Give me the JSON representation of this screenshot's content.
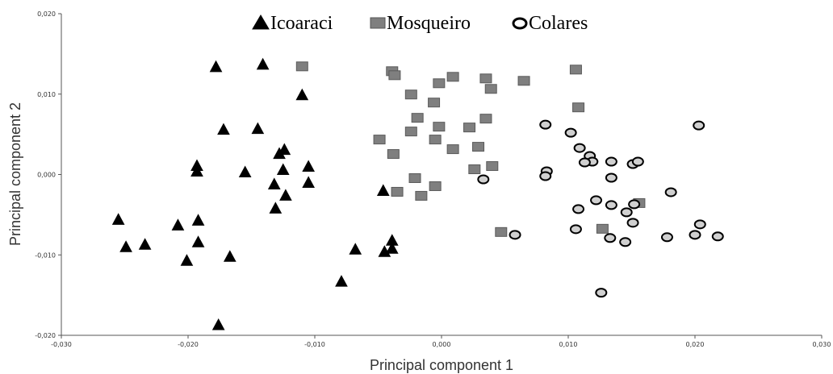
{
  "chart_data": {
    "type": "scatter",
    "title": "",
    "xlabel": "Principal component 1",
    "ylabel": "Principal component 2",
    "xlim": [
      -0.03,
      0.03
    ],
    "ylim": [
      -0.02,
      0.02
    ],
    "xticks": [
      "-0,030",
      "-0,020",
      "-0,010",
      "0,000",
      "0,010",
      "0,020",
      "0,030"
    ],
    "yticks": [
      "-0,020",
      "-0,010",
      "0,000",
      "0,010",
      "0,020"
    ],
    "legend_position": "top-center",
    "grid": false,
    "series": [
      {
        "name": "Icoaraci",
        "marker": "triangle",
        "color": "#000000",
        "points": [
          [
            -0.0178,
            0.0134
          ],
          [
            -0.0141,
            0.0137
          ],
          [
            -0.011,
            0.0099
          ],
          [
            -0.0172,
            0.0056
          ],
          [
            -0.0145,
            0.0057
          ],
          [
            -0.0124,
            0.0031
          ],
          [
            -0.0128,
            0.0026
          ],
          [
            -0.0193,
            0.0011
          ],
          [
            -0.0193,
            0.0004
          ],
          [
            -0.0155,
            0.0003
          ],
          [
            -0.0125,
            0.0006
          ],
          [
            -0.0105,
            0.001
          ],
          [
            -0.0132,
            -0.0012
          ],
          [
            -0.0105,
            -0.001
          ],
          [
            -0.0123,
            -0.0026
          ],
          [
            -0.0131,
            -0.0042
          ],
          [
            -0.0046,
            -0.002
          ],
          [
            -0.0255,
            -0.0056
          ],
          [
            -0.0192,
            -0.0057
          ],
          [
            -0.0208,
            -0.0063
          ],
          [
            -0.0249,
            -0.009
          ],
          [
            -0.0234,
            -0.0087
          ],
          [
            -0.0192,
            -0.0084
          ],
          [
            -0.0167,
            -0.0102
          ],
          [
            -0.0201,
            -0.0107
          ],
          [
            -0.0068,
            -0.0093
          ],
          [
            -0.0039,
            -0.0082
          ],
          [
            -0.0045,
            -0.0096
          ],
          [
            -0.0039,
            -0.0092
          ],
          [
            -0.0079,
            -0.0133
          ],
          [
            -0.0176,
            -0.0187
          ]
        ]
      },
      {
        "name": "Mosqueiro",
        "marker": "square",
        "color": "#7f7f7f",
        "points": [
          [
            -0.011,
            0.0135
          ],
          [
            -0.0039,
            0.0129
          ],
          [
            -0.0037,
            0.0124
          ],
          [
            0.0009,
            0.0122
          ],
          [
            0.0035,
            0.012
          ],
          [
            -0.0002,
            0.0114
          ],
          [
            0.0065,
            0.0117
          ],
          [
            0.0106,
            0.0131
          ],
          [
            0.0039,
            0.0107
          ],
          [
            -0.0024,
            0.01
          ],
          [
            -0.0006,
            0.009
          ],
          [
            0.0108,
            0.0084
          ],
          [
            -0.0019,
            0.0071
          ],
          [
            0.0035,
            0.007
          ],
          [
            -0.0002,
            0.006
          ],
          [
            0.0022,
            0.0059
          ],
          [
            -0.0024,
            0.0054
          ],
          [
            -0.0049,
            0.0044
          ],
          [
            -0.0005,
            0.0044
          ],
          [
            0.0029,
            0.0035
          ],
          [
            0.0009,
            0.0032
          ],
          [
            -0.0038,
            0.0026
          ],
          [
            0.004,
            0.0011
          ],
          [
            0.0026,
            0.0007
          ],
          [
            -0.0021,
            -0.0004
          ],
          [
            -0.0005,
            -0.0014
          ],
          [
            -0.0035,
            -0.0021
          ],
          [
            -0.0016,
            -0.0026
          ],
          [
            0.0156,
            -0.0035
          ],
          [
            0.0047,
            -0.0071
          ],
          [
            0.0127,
            -0.0067
          ]
        ]
      },
      {
        "name": "Colares",
        "marker": "circle",
        "color": "#d0d0d0",
        "points": [
          [
            0.0082,
            0.0062
          ],
          [
            0.0102,
            0.0052
          ],
          [
            0.0203,
            0.0061
          ],
          [
            0.0109,
            0.0033
          ],
          [
            0.0117,
            0.0023
          ],
          [
            0.0119,
            0.0016
          ],
          [
            0.0113,
            0.0015
          ],
          [
            0.0134,
            0.0016
          ],
          [
            0.0151,
            0.0013
          ],
          [
            0.0155,
            0.0016
          ],
          [
            0.0083,
            0.0004
          ],
          [
            0.0082,
            -0.0002
          ],
          [
            0.0134,
            -0.0004
          ],
          [
            0.0033,
            -0.0006
          ],
          [
            0.0181,
            -0.0022
          ],
          [
            0.0122,
            -0.0032
          ],
          [
            0.0134,
            -0.0038
          ],
          [
            0.0152,
            -0.0037
          ],
          [
            0.0108,
            -0.0043
          ],
          [
            0.0146,
            -0.0047
          ],
          [
            0.0151,
            -0.006
          ],
          [
            0.0204,
            -0.0062
          ],
          [
            0.0106,
            -0.0068
          ],
          [
            0.0058,
            -0.0075
          ],
          [
            0.02,
            -0.0075
          ],
          [
            0.0218,
            -0.0077
          ],
          [
            0.0178,
            -0.0078
          ],
          [
            0.0133,
            -0.0079
          ],
          [
            0.0145,
            -0.0084
          ],
          [
            0.0126,
            -0.0147
          ]
        ]
      }
    ]
  }
}
